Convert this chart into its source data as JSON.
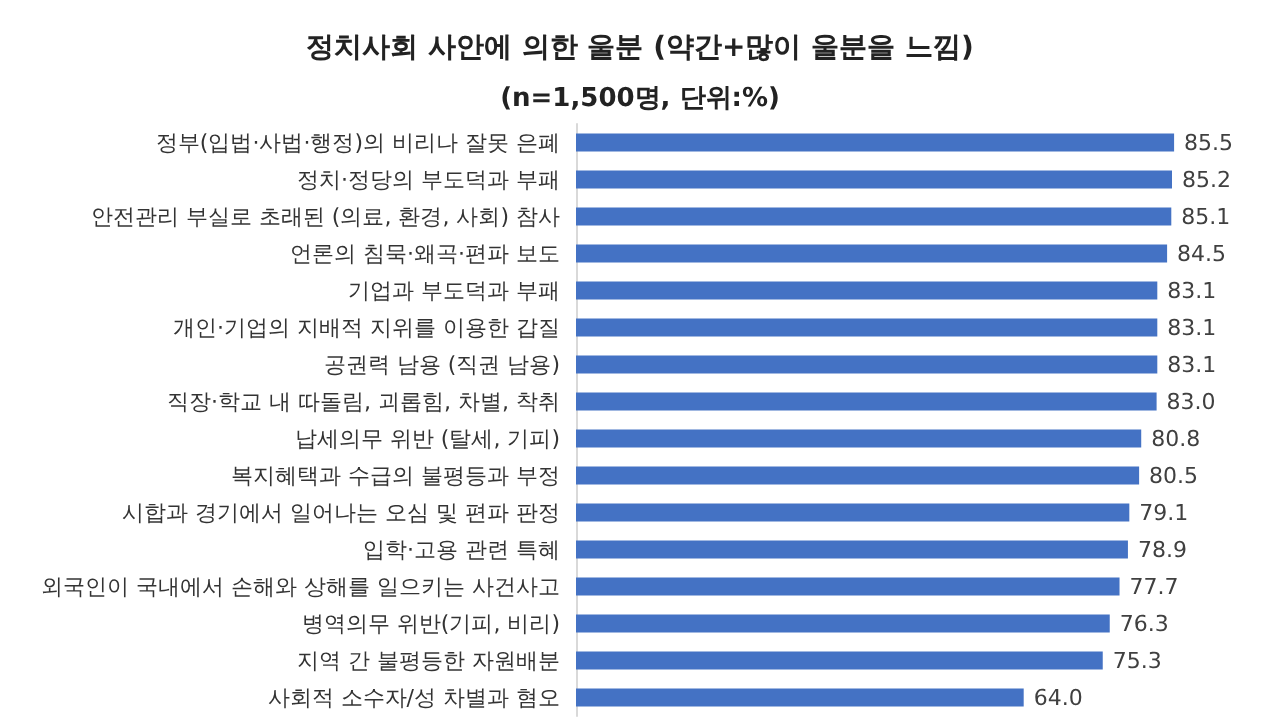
{
  "chart_data": {
    "type": "bar",
    "orientation": "horizontal",
    "title": "정치사회 사안에 의한 울분 (약간+많이 울분을 느낌)",
    "subtitle": "(n=1,500명, 단위:%)",
    "categories": [
      "정부(입법·사법·행정)의 비리나 잘못 은폐",
      "정치·정당의 부도덕과 부패",
      "안전관리 부실로 초래된 (의료, 환경, 사회) 참사",
      "언론의 침묵·왜곡·편파 보도",
      "기업과 부도덕과 부패",
      "개인·기업의 지배적 지위를 이용한 갑질",
      "공권력 남용 (직권 남용)",
      "직장·학교 내 따돌림, 괴롭힘, 차별, 착취",
      "납세의무 위반 (탈세, 기피)",
      "복지혜택과 수급의 불평등과 부정",
      "시합과 경기에서 일어나는 오심 및 편파 판정",
      "입학·고용 관련 특혜",
      "외국인이 국내에서 손해와 상해를 일으키는 사건사고",
      "병역의무 위반(기피, 비리)",
      "지역 간 불평등한 자원배분",
      "사회적 소수자/성 차별과 혐오"
    ],
    "values": [
      85.5,
      85.2,
      85.1,
      84.5,
      83.1,
      83.1,
      83.1,
      83.0,
      80.8,
      80.5,
      79.1,
      78.9,
      77.7,
      76.3,
      75.3,
      64.0
    ],
    "value_labels": [
      "85.5",
      "85.2",
      "85.1",
      "84.5",
      "83.1",
      "83.1",
      "83.1",
      "83.0",
      "80.8",
      "80.5",
      "79.1",
      "78.9",
      "77.7",
      "76.3",
      "75.3",
      "64.0"
    ],
    "color": "#4472c4"
  }
}
